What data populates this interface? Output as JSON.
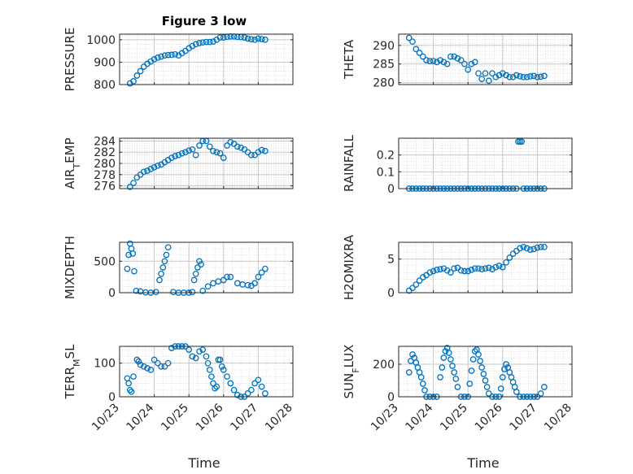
{
  "chart_data": {
    "title": "Figure 3 low",
    "xlabel": "Time",
    "x_ticks": [
      "10/23",
      "10/24",
      "10/25",
      "10/26",
      "10/27",
      "10/28"
    ],
    "marker_color": "#0072BD",
    "marker": "open-circle",
    "grid": true,
    "minor_grid": true,
    "panels": [
      {
        "type": "scatter",
        "ylabel": "PRESSURE",
        "ylabel_sub": "",
        "ylabel_suffix": "",
        "ylim": [
          800,
          1025
        ],
        "yticks": [
          800,
          900,
          1000
        ],
        "x": [
          23.3,
          23.4,
          23.5,
          23.6,
          23.7,
          23.8,
          23.9,
          24.0,
          24.1,
          24.2,
          24.3,
          24.4,
          24.5,
          24.6,
          24.7,
          24.8,
          24.9,
          25.0,
          25.1,
          25.2,
          25.3,
          25.4,
          25.5,
          25.6,
          25.7,
          25.8,
          25.9,
          26.0,
          26.1,
          26.2,
          26.3,
          26.4,
          26.5,
          26.6,
          26.7,
          26.8,
          26.9,
          27.0,
          27.1,
          27.2
        ],
        "y": [
          805,
          815,
          840,
          860,
          880,
          893,
          903,
          913,
          920,
          925,
          930,
          932,
          933,
          935,
          930,
          940,
          950,
          962,
          972,
          980,
          985,
          988,
          990,
          990,
          992,
          1000,
          1010,
          1010,
          1013,
          1015,
          1015,
          1013,
          1012,
          1010,
          1005,
          1002,
          1000,
          1005,
          1003,
          1000
        ]
      },
      {
        "type": "scatter",
        "ylabel": "THETA",
        "ylabel_sub": "",
        "ylabel_suffix": "",
        "ylim": [
          279.5,
          293
        ],
        "yticks": [
          280,
          285,
          290
        ],
        "x": [
          23.3,
          23.4,
          23.5,
          23.6,
          23.7,
          23.8,
          23.9,
          24.0,
          24.1,
          24.2,
          24.3,
          24.4,
          24.5,
          24.6,
          24.7,
          24.8,
          24.9,
          25.0,
          25.1,
          25.2,
          25.3,
          25.4,
          25.5,
          25.6,
          25.7,
          25.8,
          25.9,
          26.0,
          26.1,
          26.2,
          26.3,
          26.4,
          26.5,
          26.6,
          26.7,
          26.8,
          26.9,
          27.0,
          27.1,
          27.2
        ],
        "y": [
          292,
          291,
          289,
          288,
          287,
          286,
          285.8,
          285.8,
          285.5,
          286,
          285.5,
          285,
          287,
          287,
          286.5,
          286,
          285,
          283.5,
          285,
          285.5,
          282.5,
          281,
          282.5,
          280.5,
          282.5,
          281.5,
          282,
          282.5,
          282,
          281.5,
          281.5,
          282,
          281.7,
          281.5,
          281.5,
          281.7,
          281.8,
          281.5,
          281.6,
          281.8
        ]
      },
      {
        "type": "scatter",
        "ylabel": "AIR",
        "ylabel_sub": "T",
        "ylabel_suffix": "EMP",
        "ylim": [
          275.5,
          284.5
        ],
        "yticks": [
          276,
          278,
          280,
          282,
          284
        ],
        "x": [
          23.3,
          23.4,
          23.5,
          23.6,
          23.7,
          23.8,
          23.9,
          24.0,
          24.1,
          24.2,
          24.3,
          24.4,
          24.5,
          24.6,
          24.7,
          24.8,
          24.9,
          25.0,
          25.1,
          25.2,
          25.3,
          25.4,
          25.5,
          25.6,
          25.7,
          25.8,
          25.9,
          26.0,
          26.1,
          26.2,
          26.3,
          26.4,
          26.5,
          26.6,
          26.7,
          26.8,
          26.9,
          27.0,
          27.1,
          27.2
        ],
        "y": [
          275.8,
          276.5,
          277.5,
          278,
          278.5,
          278.7,
          279,
          279.3,
          279.6,
          279.8,
          280.2,
          280.6,
          281,
          281.3,
          281.5,
          281.8,
          282,
          282.3,
          282.5,
          281.5,
          283.2,
          284,
          284,
          283,
          282.2,
          282,
          281.8,
          281,
          283.2,
          283.8,
          283.5,
          283,
          282.8,
          282.5,
          282,
          281.5,
          281.5,
          282,
          282.4,
          282.2
        ]
      },
      {
        "type": "scatter",
        "ylabel": "RAINFALL",
        "ylabel_sub": "",
        "ylabel_suffix": "",
        "ylim": [
          0,
          0.3
        ],
        "yticks": [
          0,
          0.1,
          0.2
        ],
        "x": [
          23.3,
          23.4,
          23.5,
          23.6,
          23.7,
          23.8,
          23.9,
          24.0,
          24.1,
          24.2,
          24.3,
          24.4,
          24.5,
          24.6,
          24.7,
          24.8,
          24.9,
          25.0,
          25.1,
          25.2,
          25.3,
          25.4,
          25.5,
          25.6,
          25.7,
          25.8,
          25.9,
          26.0,
          26.1,
          26.2,
          26.3,
          26.4,
          26.45,
          26.5,
          26.55,
          26.6,
          26.7,
          26.8,
          26.9,
          27.0,
          27.1,
          27.2
        ],
        "y": [
          0,
          0,
          0,
          0,
          0,
          0,
          0,
          0,
          0,
          0,
          0,
          0,
          0,
          0,
          0,
          0,
          0,
          0,
          0,
          0,
          0,
          0,
          0,
          0,
          0,
          0,
          0,
          0,
          0,
          0,
          0,
          0,
          0.28,
          0.28,
          0.28,
          0,
          0,
          0,
          0,
          0,
          0,
          0
        ]
      },
      {
        "type": "scatter",
        "ylabel": "MIXDEPTH",
        "ylabel_sub": "",
        "ylabel_suffix": "",
        "ylim": [
          0,
          800
        ],
        "yticks": [
          0,
          500
        ],
        "x": [
          23.22,
          23.26,
          23.3,
          23.34,
          23.38,
          23.42,
          23.48,
          23.6,
          23.75,
          23.9,
          24.05,
          24.15,
          24.2,
          24.25,
          24.3,
          24.35,
          24.4,
          24.55,
          24.7,
          24.85,
          25.0,
          25.1,
          25.15,
          25.2,
          25.25,
          25.3,
          25.35,
          25.4,
          25.55,
          25.7,
          25.85,
          26.0,
          26.1,
          26.2,
          26.4,
          26.55,
          26.7,
          26.8,
          26.9,
          27.0,
          27.1,
          27.2
        ],
        "y": [
          380,
          600,
          780,
          700,
          620,
          340,
          30,
          20,
          5,
          0,
          10,
          200,
          300,
          400,
          500,
          600,
          720,
          10,
          0,
          0,
          0,
          10,
          200,
          300,
          400,
          500,
          450,
          30,
          100,
          150,
          180,
          200,
          250,
          250,
          150,
          130,
          120,
          110,
          150,
          250,
          320,
          380
        ]
      },
      {
        "type": "scatter",
        "ylabel": "H2OMIXRA",
        "ylabel_sub": "",
        "ylabel_suffix": "",
        "ylim": [
          0,
          7.5
        ],
        "yticks": [
          0,
          5
        ],
        "x": [
          23.3,
          23.4,
          23.5,
          23.6,
          23.7,
          23.8,
          23.9,
          24.0,
          24.1,
          24.2,
          24.3,
          24.4,
          24.5,
          24.6,
          24.7,
          24.8,
          24.9,
          25.0,
          25.1,
          25.2,
          25.3,
          25.4,
          25.5,
          25.6,
          25.7,
          25.8,
          25.9,
          26.0,
          26.1,
          26.2,
          26.3,
          26.4,
          26.5,
          26.6,
          26.7,
          26.8,
          26.9,
          27.0,
          27.1,
          27.2
        ],
        "y": [
          0.3,
          0.7,
          1.2,
          1.8,
          2.3,
          2.6,
          3,
          3.2,
          3.4,
          3.5,
          3.6,
          3.3,
          3,
          3.6,
          3.7,
          3.3,
          3.2,
          3.2,
          3.4,
          3.6,
          3.6,
          3.5,
          3.6,
          3.7,
          3.5,
          3.8,
          4,
          3.8,
          4.5,
          5.2,
          5.8,
          6.2,
          6.6,
          6.8,
          6.6,
          6.4,
          6.5,
          6.7,
          6.8,
          6.8
        ]
      },
      {
        "type": "scatter",
        "ylabel": "TERR",
        "ylabel_sub": "M",
        "ylabel_suffix": "SL",
        "ylim": [
          0,
          150
        ],
        "yticks": [
          0,
          100
        ],
        "x": [
          23.22,
          23.26,
          23.3,
          23.34,
          23.4,
          23.5,
          23.55,
          23.6,
          23.7,
          23.8,
          23.9,
          24.0,
          24.1,
          24.2,
          24.3,
          24.4,
          24.5,
          24.6,
          24.7,
          24.8,
          24.9,
          25.0,
          25.1,
          25.2,
          25.3,
          25.4,
          25.5,
          25.55,
          25.6,
          25.65,
          25.7,
          25.75,
          25.8,
          25.85,
          25.9,
          25.95,
          26.0,
          26.1,
          26.2,
          26.3,
          26.4,
          26.5,
          26.6,
          26.7,
          26.8,
          26.9,
          27.0,
          27.1,
          27.2
        ],
        "y": [
          55,
          40,
          20,
          15,
          60,
          110,
          105,
          95,
          90,
          85,
          80,
          110,
          100,
          90,
          90,
          100,
          145,
          150,
          150,
          150,
          150,
          140,
          120,
          115,
          135,
          140,
          120,
          100,
          80,
          60,
          40,
          25,
          30,
          110,
          110,
          90,
          80,
          60,
          40,
          20,
          5,
          0,
          0,
          10,
          20,
          40,
          50,
          30,
          10
        ]
      },
      {
        "type": "scatter",
        "ylabel": "SUN",
        "ylabel_sub": "F",
        "ylabel_suffix": "LUX",
        "ylim": [
          0,
          310
        ],
        "yticks": [
          0,
          200
        ],
        "x": [
          23.3,
          23.35,
          23.4,
          23.45,
          23.5,
          23.55,
          23.6,
          23.65,
          23.7,
          23.75,
          23.8,
          23.9,
          24.0,
          24.1,
          24.2,
          24.25,
          24.3,
          24.35,
          24.4,
          24.45,
          24.5,
          24.55,
          24.6,
          24.65,
          24.7,
          24.8,
          24.9,
          25.0,
          25.05,
          25.1,
          25.15,
          25.2,
          25.25,
          25.3,
          25.35,
          25.4,
          25.45,
          25.5,
          25.55,
          25.6,
          25.7,
          25.8,
          25.9,
          25.95,
          26.0,
          26.05,
          26.1,
          26.15,
          26.2,
          26.25,
          26.3,
          26.35,
          26.4,
          26.5,
          26.6,
          26.7,
          26.8,
          26.9,
          27.0,
          27.1,
          27.2
        ],
        "y": [
          150,
          220,
          260,
          240,
          210,
          180,
          150,
          120,
          80,
          40,
          0,
          0,
          0,
          0,
          120,
          180,
          240,
          280,
          300,
          270,
          230,
          190,
          150,
          110,
          60,
          0,
          0,
          0,
          80,
          160,
          230,
          280,
          290,
          260,
          220,
          180,
          140,
          100,
          60,
          20,
          0,
          0,
          0,
          50,
          120,
          170,
          200,
          180,
          150,
          120,
          90,
          60,
          30,
          0,
          0,
          0,
          0,
          0,
          0,
          20,
          60
        ]
      }
    ]
  }
}
